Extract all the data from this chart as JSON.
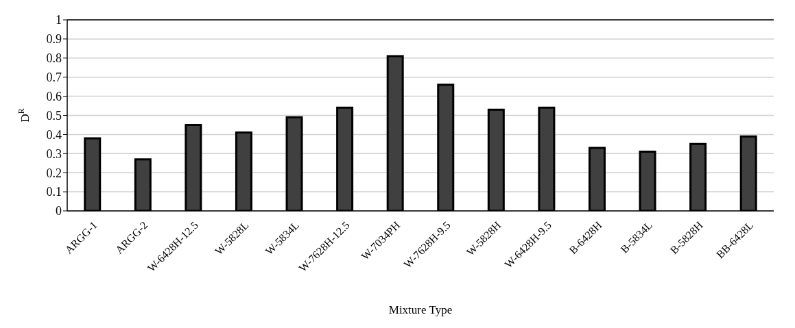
{
  "chart_data": {
    "type": "bar",
    "xlabel": "Mixture Type",
    "ylabel": "D$^{R}$",
    "categories": [
      "ARGG-1",
      "ARGG-2",
      "W-6428H-12.5",
      "W-5828L",
      "W-5834L",
      "W-7628H-12.5",
      "W-7034PH",
      "W-7628H-9.5",
      "W-5828H",
      "W-6428H-9.5",
      "B-6428H",
      "B-5834L",
      "B-5828H",
      "BB-6428L"
    ],
    "values": [
      0.38,
      0.27,
      0.45,
      0.41,
      0.49,
      0.54,
      0.81,
      0.66,
      0.53,
      0.54,
      0.33,
      0.31,
      0.35,
      0.39
    ],
    "color": "#404040",
    "ylim": [
      0,
      1
    ],
    "yticks": [
      0,
      0.1,
      0.2,
      0.3,
      0.4,
      0.5,
      0.6,
      0.7,
      0.8,
      0.9,
      1
    ],
    "grid": "y"
  }
}
